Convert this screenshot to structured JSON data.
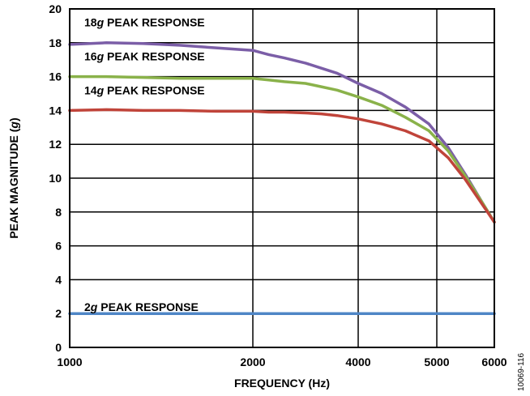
{
  "chart_data": {
    "type": "line",
    "title": "",
    "xlabel": "FREQUENCY (Hz)",
    "ylabel_parts": [
      "PEAK MAGNITUDE (",
      "g",
      ")"
    ],
    "figure_id": "10069-116",
    "x_ticks": [
      {
        "value": 1000,
        "label": "1000"
      },
      {
        "value": 2000,
        "label": "2000"
      },
      {
        "value": 4000,
        "label": "4000"
      },
      {
        "value": 5000,
        "label": "5000"
      },
      {
        "value": 6000,
        "label": "6000"
      }
    ],
    "y_ticks": [
      0,
      2,
      4,
      6,
      8,
      10,
      12,
      14,
      16,
      18,
      20
    ],
    "xlim": [
      1000,
      6000
    ],
    "ylim": [
      0,
      20
    ],
    "grid": true,
    "series": [
      {
        "id": "s18",
        "label_g": "18",
        "label_rest": " PEAK RESPONSE",
        "label_x": 1000,
        "label_y": 19.2,
        "color": "#7b5ea7",
        "x": [
          1000,
          1200,
          1400,
          1600,
          1800,
          2000,
          2300,
          2600,
          3000,
          3300,
          3600,
          4000,
          4300,
          4600,
          4900,
          5200,
          5500,
          5800,
          6000
        ],
        "y": [
          17.9,
          18.0,
          17.95,
          17.85,
          17.7,
          17.55,
          17.3,
          17.1,
          16.8,
          16.5,
          16.2,
          15.6,
          15.0,
          14.2,
          13.2,
          11.8,
          10.2,
          8.5,
          7.4
        ]
      },
      {
        "id": "s16",
        "label_g": "16",
        "label_rest": " PEAK RESPONSE",
        "label_x": 1000,
        "label_y": 17.2,
        "color": "#8ab24a",
        "x": [
          1000,
          1200,
          1400,
          1600,
          1800,
          2000,
          2300,
          2600,
          3000,
          3300,
          3600,
          4000,
          4300,
          4600,
          4900,
          5200,
          5500,
          5800,
          6000
        ],
        "y": [
          16.0,
          16.0,
          15.95,
          15.9,
          15.9,
          15.9,
          15.8,
          15.7,
          15.6,
          15.4,
          15.2,
          14.8,
          14.3,
          13.6,
          12.8,
          11.6,
          10.1,
          8.5,
          7.4
        ]
      },
      {
        "id": "s14",
        "label_g": "14",
        "label_rest": " PEAK RESPONSE",
        "label_x": 1000,
        "label_y": 15.2,
        "color": "#c0443a",
        "x": [
          1000,
          1200,
          1400,
          1600,
          1800,
          2000,
          2300,
          2600,
          3000,
          3300,
          3600,
          4000,
          4300,
          4600,
          4900,
          5200,
          5500,
          5800,
          6000
        ],
        "y": [
          14.0,
          14.05,
          14.0,
          14.0,
          13.95,
          13.95,
          13.9,
          13.9,
          13.85,
          13.8,
          13.7,
          13.5,
          13.2,
          12.8,
          12.2,
          11.2,
          9.9,
          8.4,
          7.4
        ]
      },
      {
        "id": "s2",
        "label_g": "2",
        "label_rest": " PEAK RESPONSE",
        "label_x": 1000,
        "label_y": 2.4,
        "color": "#4f86c6",
        "x": [
          1000,
          6000
        ],
        "y": [
          2.0,
          2.0
        ]
      }
    ]
  }
}
